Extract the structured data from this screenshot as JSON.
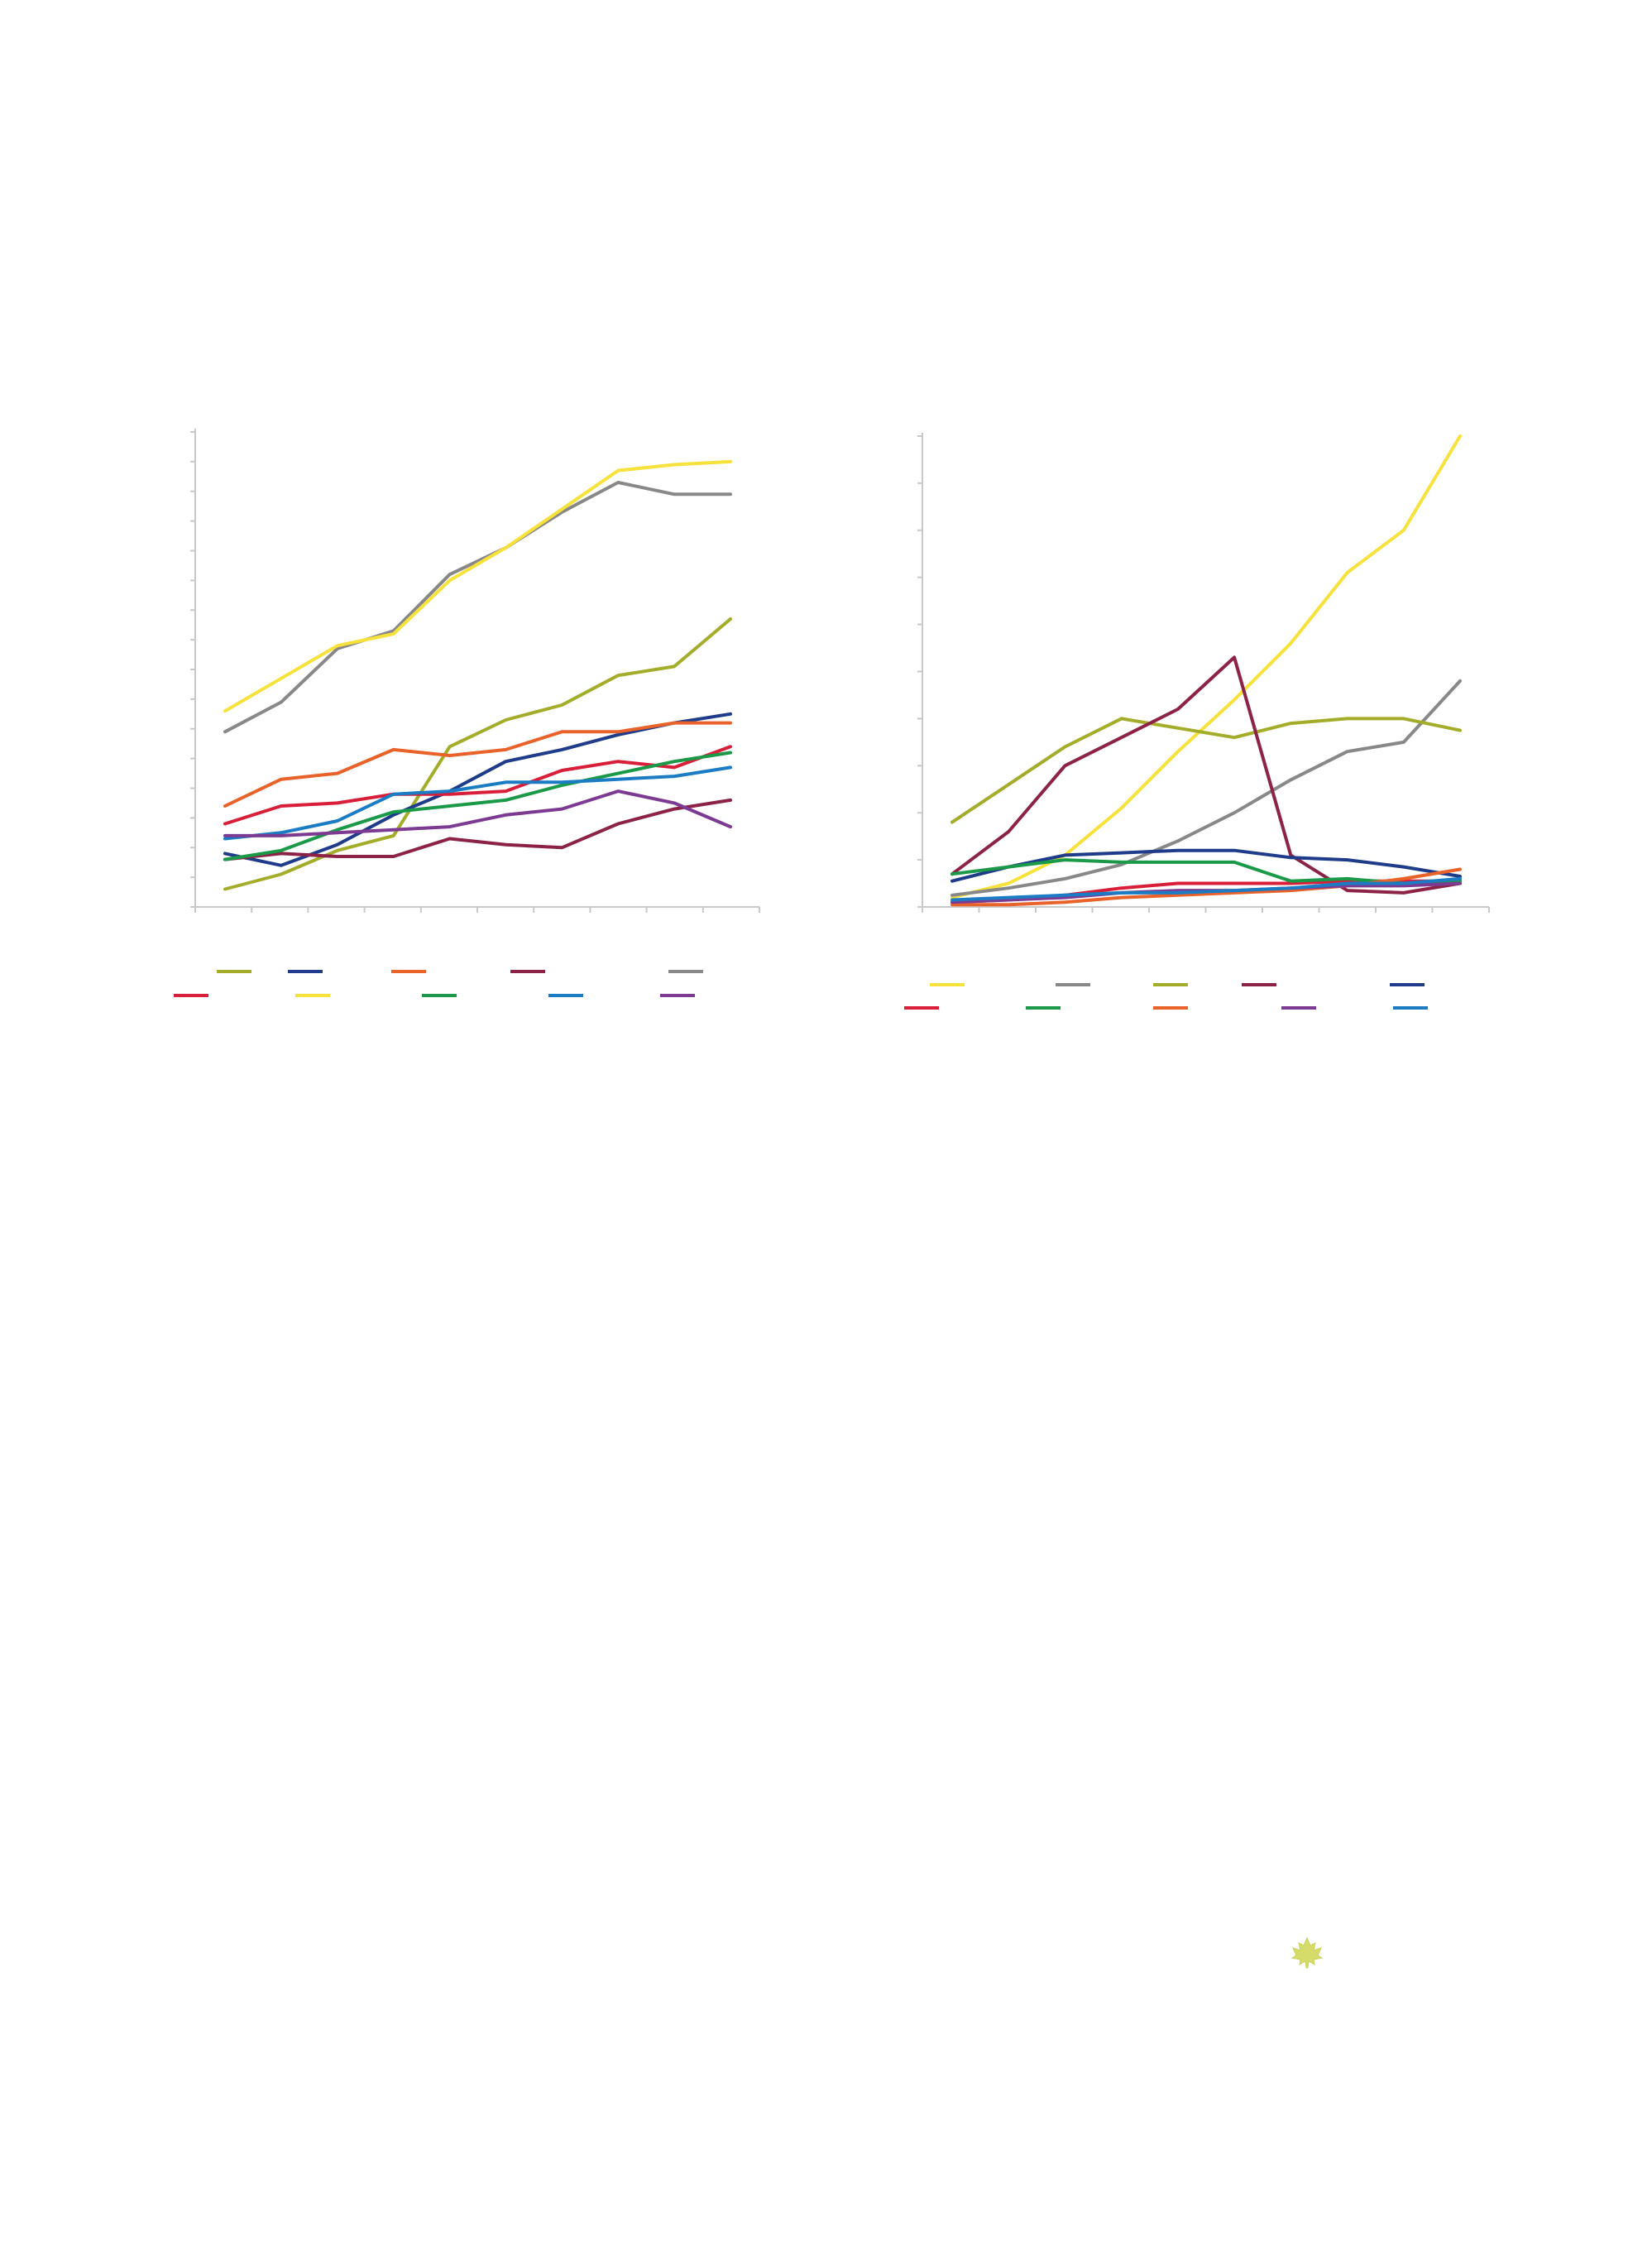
{
  "chart_data": [
    {
      "type": "line",
      "x": [
        1,
        2,
        3,
        4,
        5,
        6,
        7,
        8,
        9,
        10
      ],
      "ylim": [
        0,
        16
      ],
      "grid": false,
      "legend_placement": "bottom",
      "series": [
        {
          "color": "#a3ad2a",
          "values": [
            0.6,
            1.1,
            1.9,
            2.4,
            5.4,
            6.3,
            6.8,
            7.8,
            8.1,
            9.7
          ]
        },
        {
          "color": "#1f3c8a",
          "values": [
            1.8,
            1.4,
            2.1,
            3.1,
            3.9,
            4.9,
            5.3,
            5.8,
            6.2,
            6.5
          ]
        },
        {
          "color": "#e8622a",
          "values": [
            3.4,
            4.3,
            4.5,
            5.3,
            5.1,
            5.3,
            5.9,
            5.9,
            6.2,
            6.2
          ]
        },
        {
          "color": "#8c2346",
          "values": [
            1.6,
            1.8,
            1.7,
            1.7,
            2.3,
            2.1,
            2.0,
            2.8,
            3.3,
            3.6
          ]
        },
        {
          "color": "#888888",
          "values": [
            5.9,
            6.9,
            8.7,
            9.3,
            11.2,
            12.1,
            13.3,
            14.3,
            13.9,
            13.9
          ]
        },
        {
          "color": "#d91e3a",
          "values": [
            2.8,
            3.4,
            3.5,
            3.8,
            3.8,
            3.9,
            4.6,
            4.9,
            4.7,
            5.4
          ]
        },
        {
          "color": "#f6e23a",
          "values": [
            6.6,
            7.7,
            8.8,
            9.2,
            11.0,
            12.1,
            13.4,
            14.7,
            14.9,
            15.0
          ]
        },
        {
          "color": "#1a9a48",
          "values": [
            1.6,
            1.9,
            2.6,
            3.2,
            3.4,
            3.6,
            4.1,
            4.5,
            4.9,
            5.2
          ]
        },
        {
          "color": "#1b7cc4",
          "values": [
            2.3,
            2.5,
            2.9,
            3.8,
            3.9,
            4.2,
            4.2,
            4.3,
            4.4,
            4.7
          ]
        },
        {
          "color": "#7d3a93",
          "values": [
            2.4,
            2.4,
            2.5,
            2.6,
            2.7,
            3.1,
            3.3,
            3.9,
            3.5,
            2.7
          ]
        }
      ]
    },
    {
      "type": "line",
      "x": [
        1,
        2,
        3,
        4,
        5,
        6,
        7,
        8,
        9,
        10
      ],
      "ylim": [
        0,
        10
      ],
      "grid": false,
      "legend_placement": "bottom",
      "series": [
        {
          "color": "#f6e23a",
          "values": [
            0.2,
            0.5,
            1.1,
            2.1,
            3.3,
            4.4,
            5.6,
            7.1,
            8.0,
            10.0
          ]
        },
        {
          "color": "#888888",
          "values": [
            0.25,
            0.4,
            0.6,
            0.9,
            1.4,
            2.0,
            2.7,
            3.3,
            3.5,
            4.8
          ]
        },
        {
          "color": "#a3ad2a",
          "values": [
            1.8,
            2.6,
            3.4,
            4.0,
            3.8,
            3.6,
            3.9,
            4.0,
            4.0,
            3.75
          ]
        },
        {
          "color": "#8c2346",
          "values": [
            0.7,
            1.6,
            3.0,
            3.6,
            4.2,
            5.3,
            1.1,
            0.35,
            0.3,
            0.5
          ]
        },
        {
          "color": "#1f3c8a",
          "values": [
            0.55,
            0.85,
            1.1,
            1.15,
            1.2,
            1.2,
            1.05,
            1.0,
            0.85,
            0.65
          ]
        },
        {
          "color": "#d91e3a",
          "values": [
            0.1,
            0.15,
            0.25,
            0.4,
            0.5,
            0.5,
            0.5,
            0.55,
            0.55,
            0.55
          ]
        },
        {
          "color": "#1a9a48",
          "values": [
            0.7,
            0.85,
            1.0,
            0.95,
            0.95,
            0.95,
            0.55,
            0.6,
            0.5,
            0.55
          ]
        },
        {
          "color": "#e8622a",
          "values": [
            0.05,
            0.05,
            0.1,
            0.2,
            0.25,
            0.3,
            0.35,
            0.45,
            0.6,
            0.8
          ]
        },
        {
          "color": "#7d3a93",
          "values": [
            0.1,
            0.15,
            0.2,
            0.3,
            0.35,
            0.35,
            0.4,
            0.45,
            0.45,
            0.5
          ]
        },
        {
          "color": "#1b7cc4",
          "values": [
            0.15,
            0.2,
            0.25,
            0.3,
            0.3,
            0.35,
            0.4,
            0.5,
            0.5,
            0.6
          ]
        }
      ]
    }
  ],
  "decor": {
    "logo_icon": "maple-leaf-icon",
    "logo_color": "#d6dc6a"
  }
}
